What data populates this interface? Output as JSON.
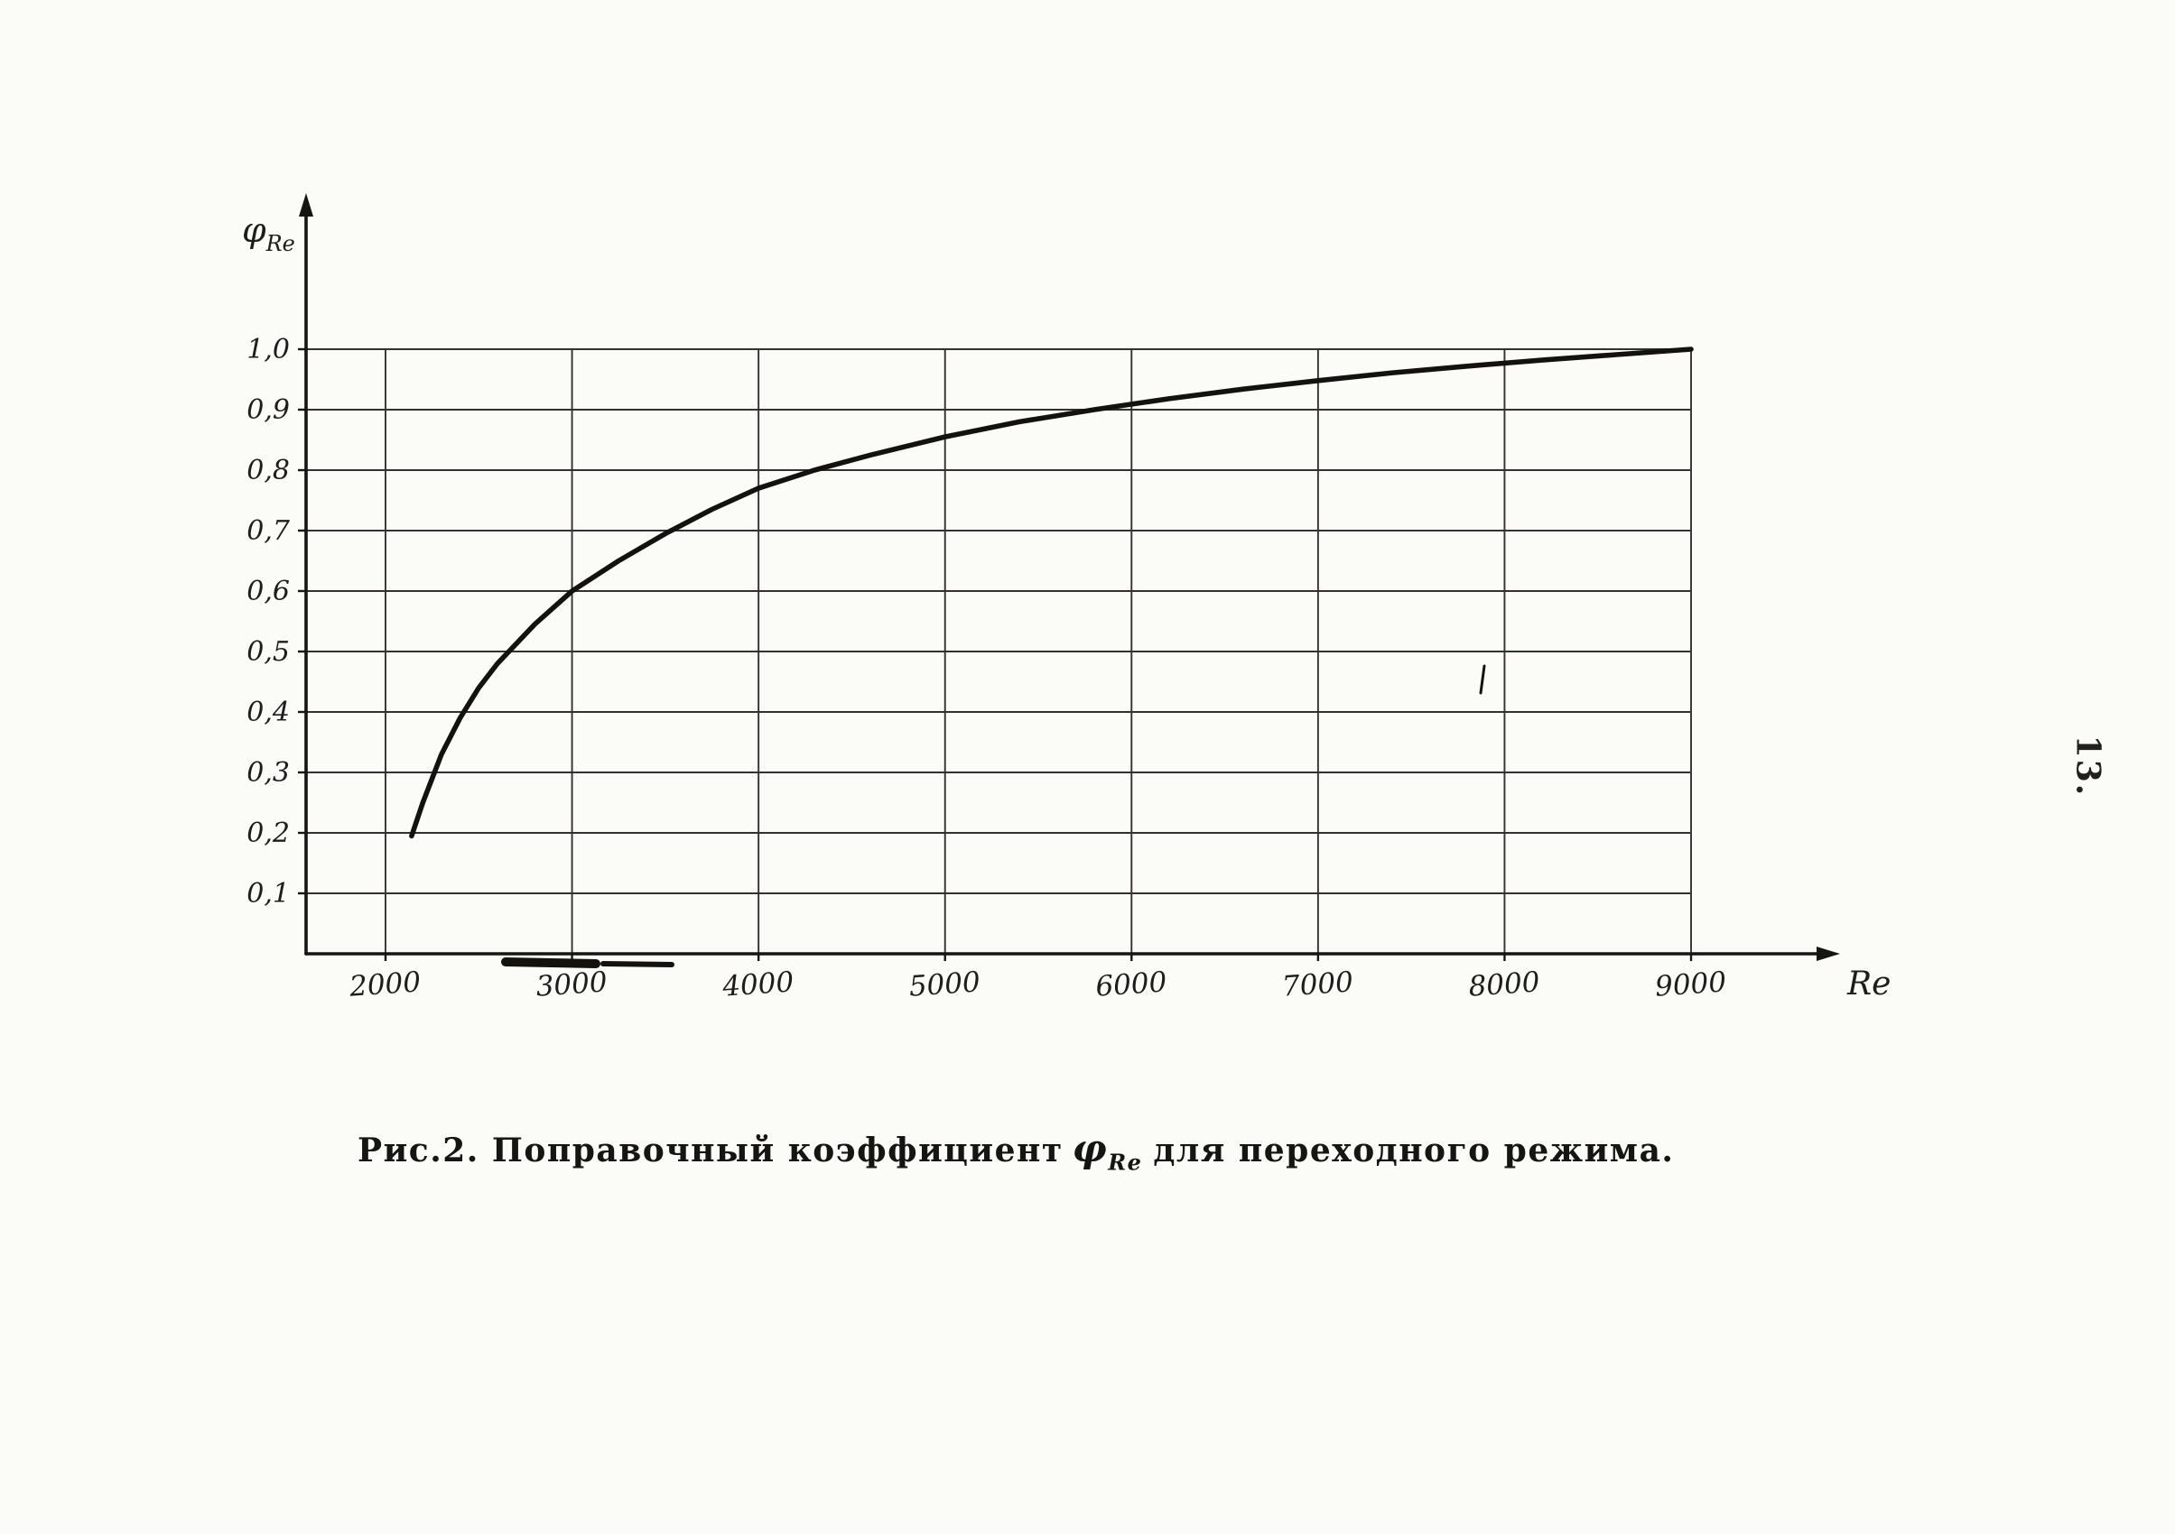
{
  "page": {
    "page_number": "13.",
    "caption": {
      "prefix": "Рис.2. Поправочный коэффициент",
      "symbol": "φ",
      "symbol_sub": "Re",
      "suffix": "для переходного режима."
    }
  },
  "chart_data": {
    "type": "line",
    "title": "Поправочный коэффициент φRe для переходного режима",
    "xlabel": "Re",
    "ylabel": "φRe",
    "ylabel_symbol": "φ",
    "ylabel_sub": "Re",
    "x_ticks": [
      2000,
      3000,
      4000,
      5000,
      6000,
      7000,
      8000,
      9000
    ],
    "x_tick_labels": [
      "2000",
      "3000",
      "4000",
      "5000",
      "6000",
      "7000",
      "8000",
      "9000"
    ],
    "y_ticks": [
      0.1,
      0.2,
      0.3,
      0.4,
      0.5,
      0.6,
      0.7,
      0.8,
      0.9,
      1.0
    ],
    "y_tick_labels": [
      "0,1",
      "0,2",
      "0,3",
      "0,4",
      "0,5",
      "0,6",
      "0,7",
      "0,8",
      "0,9",
      "1,0"
    ],
    "xlim": [
      1570,
      9000
    ],
    "ylim": [
      0,
      1.0
    ],
    "grid": true,
    "legend": false,
    "series": [
      {
        "name": "φRe",
        "x": [
          2140,
          2200,
          2300,
          2400,
          2500,
          2600,
          2800,
          3000,
          3250,
          3500,
          3750,
          4000,
          4300,
          4600,
          5000,
          5400,
          5800,
          6200,
          6600,
          7000,
          7400,
          7800,
          8200,
          8600,
          9000
        ],
        "y": [
          0.195,
          0.25,
          0.33,
          0.39,
          0.44,
          0.48,
          0.545,
          0.6,
          0.65,
          0.695,
          0.735,
          0.77,
          0.8,
          0.825,
          0.855,
          0.88,
          0.9,
          0.918,
          0.934,
          0.948,
          0.961,
          0.972,
          0.982,
          0.991,
          1.0
        ]
      }
    ]
  }
}
